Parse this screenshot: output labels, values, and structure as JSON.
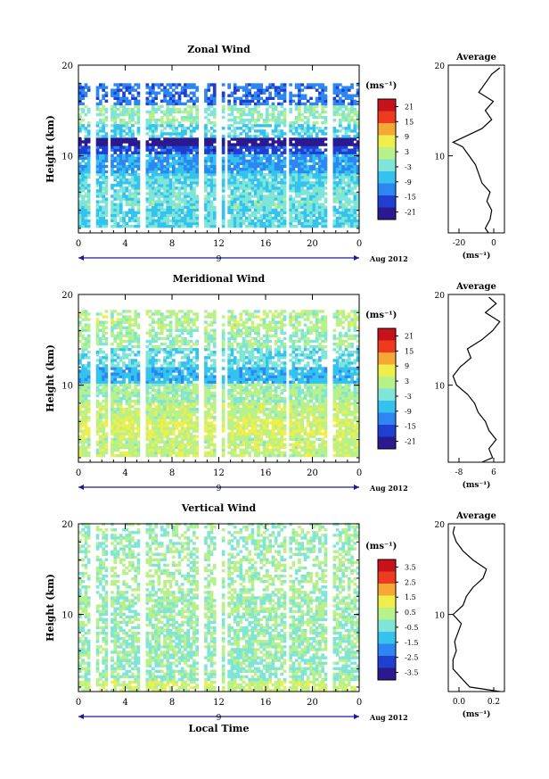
{
  "x_axis": {
    "ticks": [
      "0",
      "4",
      "8",
      "12",
      "16",
      "20",
      "0"
    ],
    "date_label": "9",
    "month_label": "Aug 2012",
    "xlabel": "Local Time"
  },
  "y_axis": {
    "label": "Height (km)",
    "ticks": [
      "10",
      "20"
    ]
  },
  "panels": [
    {
      "id": "zonal",
      "title": "Zonal Wind",
      "unit": "(ms⁻¹)",
      "colorbar": {
        "ticks": [
          "21",
          "15",
          "9",
          "3",
          "-3",
          "-9",
          "-15",
          "-21"
        ],
        "range": [
          -24,
          24
        ]
      },
      "avg_title": "Average",
      "avg_xticks": [
        "-20",
        "0"
      ],
      "avg_unit": "(ms⁻¹)"
    },
    {
      "id": "meridional",
      "title": "Meridional Wind",
      "unit": "(ms⁻¹)",
      "colorbar": {
        "ticks": [
          "21",
          "15",
          "9",
          "3",
          "-3",
          "-9",
          "-15",
          "-21"
        ],
        "range": [
          -24,
          24
        ]
      },
      "avg_title": "Average",
      "avg_xticks": [
        "-8",
        "6"
      ],
      "avg_unit": "(ms⁻¹)"
    },
    {
      "id": "vertical",
      "title": "Vertical Wind",
      "unit": "(ms⁻¹)",
      "colorbar": {
        "ticks": [
          "3.5",
          "2.5",
          "1.5",
          "0.5",
          "-0.5",
          "-1.5",
          "-2.5",
          "-3.5"
        ],
        "range": [
          -4,
          4
        ]
      },
      "avg_title": "Average",
      "avg_xticks": [
        "0.0",
        "0.2"
      ],
      "avg_unit": "(ms⁻¹)"
    }
  ],
  "chart_data": [
    {
      "type": "heatmap",
      "title": "Zonal Wind",
      "xlabel": "Local Time",
      "ylabel": "Height (km)",
      "xlim": [
        0,
        24
      ],
      "ylim": [
        1.5,
        20
      ],
      "colorbar_range": [
        -24,
        24
      ],
      "profile_layers": [
        {
          "z": [
            2,
            4
          ],
          "v": -5
        },
        {
          "z": [
            4,
            6
          ],
          "v": -3
        },
        {
          "z": [
            6,
            8
          ],
          "v": -5
        },
        {
          "z": [
            8,
            10
          ],
          "v": -10
        },
        {
          "z": [
            10,
            11
          ],
          "v": -16
        },
        {
          "z": [
            11,
            12
          ],
          "v": -24
        },
        {
          "z": [
            12,
            13.5
          ],
          "v": -6
        },
        {
          "z": [
            13.5,
            15.5
          ],
          "v": -1
        },
        {
          "z": [
            15.5,
            18
          ],
          "v": -13
        }
      ],
      "gaps": [
        [
          1,
          1.5
        ],
        [
          2.3,
          2.7
        ],
        [
          5.2,
          5.7
        ],
        [
          10.2,
          10.6
        ],
        [
          11.7,
          12.1
        ],
        [
          12.3,
          12.6
        ],
        [
          17.6,
          18.0
        ],
        [
          21.2,
          21.6
        ]
      ],
      "average_profile": {
        "z": [
          1.5,
          2,
          3,
          4,
          5,
          6,
          7,
          8,
          9,
          10,
          11,
          11.5,
          12,
          13,
          14,
          15,
          16,
          17,
          18,
          19,
          19.7
        ],
        "v": [
          -4,
          -6,
          -3,
          -2,
          -5,
          -3,
          -8,
          -10,
          -12,
          -16,
          -20,
          -26,
          -20,
          -8,
          -2,
          -6,
          -1,
          -10,
          -6,
          -2,
          3
        ]
      }
    },
    {
      "type": "heatmap",
      "title": "Meridional Wind",
      "xlabel": "Local Time",
      "ylabel": "Height (km)",
      "xlim": [
        0,
        24
      ],
      "ylim": [
        1.5,
        20
      ],
      "colorbar_range": [
        -24,
        24
      ],
      "profile_layers": [
        {
          "z": [
            2,
            4
          ],
          "v": 3
        },
        {
          "z": [
            4,
            6
          ],
          "v": 5
        },
        {
          "z": [
            6,
            8
          ],
          "v": 3
        },
        {
          "z": [
            8,
            10
          ],
          "v": 1
        },
        {
          "z": [
            10,
            12
          ],
          "v": -8
        },
        {
          "z": [
            12,
            14
          ],
          "v": -4
        },
        {
          "z": [
            14,
            16
          ],
          "v": 0
        },
        {
          "z": [
            16,
            18.5
          ],
          "v": 2
        }
      ],
      "gaps": [
        [
          1,
          1.5
        ],
        [
          2.3,
          2.7
        ],
        [
          5.2,
          5.7
        ],
        [
          10.2,
          10.6
        ],
        [
          11.7,
          12.1
        ],
        [
          12.3,
          12.6
        ],
        [
          17.6,
          18.0
        ],
        [
          21.2,
          21.6
        ]
      ],
      "average_profile": {
        "z": [
          1.5,
          2,
          3,
          4,
          5,
          6,
          7,
          8,
          9,
          10,
          11,
          12,
          13,
          14,
          15,
          16,
          17,
          18,
          19,
          19.7
        ],
        "v": [
          0,
          3,
          2,
          4,
          2,
          1,
          -1,
          -2,
          -4,
          -7,
          -8,
          -6,
          -3,
          -4,
          0,
          3,
          5,
          1,
          4,
          2
        ]
      }
    },
    {
      "type": "heatmap",
      "title": "Vertical Wind",
      "xlabel": "Local Time",
      "ylabel": "Height (km)",
      "xlim": [
        0,
        24
      ],
      "ylim": [
        1.5,
        20
      ],
      "colorbar_range": [
        -4,
        4
      ],
      "profile_layers": [
        {
          "z": [
            1.5,
            2.5
          ],
          "v": 0.6
        },
        {
          "z": [
            2.5,
            6
          ],
          "v": -0.1
        },
        {
          "z": [
            6,
            10
          ],
          "v": 0.0
        },
        {
          "z": [
            10,
            13
          ],
          "v": 0.1
        },
        {
          "z": [
            13,
            16
          ],
          "v": 0.2
        },
        {
          "z": [
            16,
            20
          ],
          "v": 0.0
        }
      ],
      "gaps": [
        [
          1,
          1.5
        ],
        [
          2.3,
          2.7
        ],
        [
          5.2,
          5.7
        ],
        [
          10.2,
          10.6
        ],
        [
          11.7,
          12.1
        ],
        [
          12.3,
          12.6
        ],
        [
          17.6,
          18.0
        ],
        [
          21.2,
          21.6
        ]
      ],
      "average_profile": {
        "z": [
          1.5,
          2,
          3,
          4,
          5,
          6,
          7,
          8,
          9,
          10,
          11,
          12,
          13,
          14,
          15,
          16,
          17,
          18,
          19,
          19.7
        ],
        "v": [
          0.28,
          0.1,
          0.05,
          0.0,
          0.0,
          0.02,
          0.01,
          0.03,
          0.05,
          0.0,
          0.06,
          0.08,
          0.12,
          0.18,
          0.2,
          0.12,
          0.06,
          0.02,
          0.0,
          0.01
        ]
      }
    }
  ]
}
